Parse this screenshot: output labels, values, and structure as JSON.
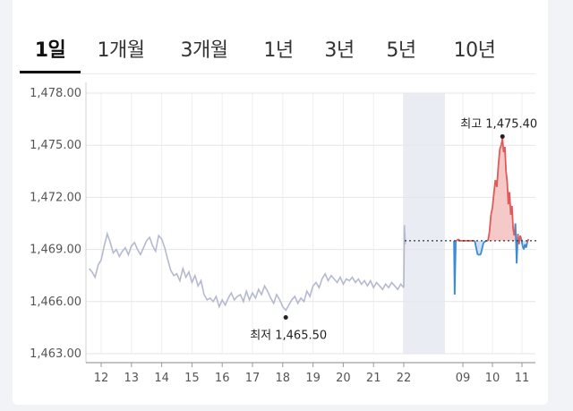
{
  "tabs": [
    {
      "label": "1일",
      "active": true
    },
    {
      "label": "1개월",
      "active": false
    },
    {
      "label": "3개월",
      "active": false
    },
    {
      "label": "1년",
      "active": false
    },
    {
      "label": "3년",
      "active": false
    },
    {
      "label": "5년",
      "active": false
    },
    {
      "label": "10년",
      "active": false
    }
  ],
  "chart_data": {
    "type": "line",
    "y_ticks": [
      "1,478.00",
      "1,475.00",
      "1,472.00",
      "1,469.00",
      "1,466.00",
      "1,463.00"
    ],
    "ylim": [
      1463,
      1478
    ],
    "x_ticks_past": [
      "12",
      "13",
      "14",
      "15",
      "16",
      "17",
      "18",
      "19",
      "20",
      "21",
      "22"
    ],
    "x_ticks_today": [
      "09",
      "10",
      "11"
    ],
    "reference_value": 1469.5,
    "high_label": "최고 1,475.40",
    "high_value": 1475.4,
    "low_label": "최저 1,465.50",
    "low_value": 1465.5,
    "past_series": {
      "name": "",
      "color": "#b5b9d0",
      "x": [
        11.6,
        11.7,
        11.8,
        11.9,
        12.0,
        12.1,
        12.2,
        12.3,
        12.4,
        12.5,
        12.6,
        12.7,
        12.8,
        12.9,
        13.0,
        13.1,
        13.2,
        13.3,
        13.4,
        13.5,
        13.6,
        13.7,
        13.8,
        13.9,
        14.0,
        14.1,
        14.2,
        14.3,
        14.4,
        14.5,
        14.6,
        14.7,
        14.8,
        14.9,
        15.0,
        15.1,
        15.2,
        15.3,
        15.4,
        15.5,
        15.6,
        15.7,
        15.8,
        15.9,
        16.0,
        16.1,
        16.2,
        16.3,
        16.4,
        16.5,
        16.6,
        16.7,
        16.8,
        16.9,
        17.0,
        17.1,
        17.2,
        17.3,
        17.4,
        17.5,
        17.6,
        17.7,
        17.8,
        17.9,
        18.0,
        18.1,
        18.2,
        18.3,
        18.4,
        18.5,
        18.6,
        18.7,
        18.8,
        18.9,
        19.0,
        19.1,
        19.2,
        19.3,
        19.4,
        19.5,
        19.6,
        19.7,
        19.8,
        19.9,
        20.0,
        20.1,
        20.2,
        20.3,
        20.4,
        20.5,
        20.6,
        20.7,
        20.8,
        20.9,
        21.0,
        21.1,
        21.2,
        21.3,
        21.4,
        21.5,
        21.6,
        21.7,
        21.8,
        21.9,
        22.0
      ],
      "y": [
        1467.9,
        1467.7,
        1467.4,
        1468.1,
        1468.4,
        1469.2,
        1469.9,
        1469.4,
        1468.8,
        1469.0,
        1468.6,
        1468.9,
        1469.1,
        1468.7,
        1469.2,
        1469.4,
        1469.0,
        1468.7,
        1469.1,
        1469.5,
        1469.7,
        1469.2,
        1468.9,
        1469.8,
        1469.6,
        1469.1,
        1468.4,
        1467.8,
        1467.5,
        1467.6,
        1467.2,
        1467.9,
        1467.4,
        1467.7,
        1467.1,
        1467.5,
        1466.9,
        1467.2,
        1466.4,
        1466.1,
        1466.2,
        1466.0,
        1466.3,
        1465.7,
        1466.1,
        1465.8,
        1466.2,
        1466.5,
        1466.1,
        1466.3,
        1466.4,
        1466.0,
        1466.6,
        1466.1,
        1466.5,
        1466.2,
        1466.7,
        1466.4,
        1466.9,
        1466.6,
        1466.2,
        1465.9,
        1466.4,
        1466.1,
        1465.7,
        1465.5,
        1465.8,
        1466.1,
        1466.3,
        1465.9,
        1466.2,
        1466.0,
        1466.6,
        1466.3,
        1466.9,
        1467.1,
        1466.8,
        1467.3,
        1467.6,
        1467.2,
        1467.5,
        1467.3,
        1467.1,
        1467.4,
        1467.0,
        1467.3,
        1467.2,
        1467.4,
        1467.1,
        1467.3,
        1467.0,
        1467.2,
        1466.9,
        1467.2,
        1466.8,
        1467.1,
        1466.9,
        1466.7,
        1467.0,
        1466.8,
        1467.1,
        1466.9,
        1466.7,
        1467.0,
        1466.8
      ]
    },
    "today_series": {
      "name": "",
      "color_above": "#e05a5a",
      "color_below": "#3a8ad6",
      "x": [
        8.7,
        8.72,
        8.76,
        8.8,
        8.84,
        8.9,
        9.0,
        9.1,
        9.2,
        9.3,
        9.4,
        9.5,
        9.6,
        9.7,
        9.8,
        9.85,
        9.9,
        9.95,
        10.0,
        10.05,
        10.1,
        10.15,
        10.2,
        10.25,
        10.3,
        10.34,
        10.38,
        10.42,
        10.46,
        10.5,
        10.54,
        10.58,
        10.62,
        10.66,
        10.7,
        10.74,
        10.78,
        10.82,
        10.86,
        10.9,
        10.94,
        10.98,
        11.02,
        11.06,
        11.1,
        11.14,
        11.18,
        11.22
      ],
      "y": [
        1469.5,
        1466.4,
        1469.5,
        1469.5,
        1469.6,
        1469.5,
        1469.5,
        1469.5,
        1469.5,
        1469.5,
        1469.5,
        1468.7,
        1468.7,
        1469.4,
        1469.5,
        1469.5,
        1470.0,
        1471.0,
        1471.4,
        1472.2,
        1473.0,
        1472.6,
        1473.8,
        1474.8,
        1475.0,
        1475.4,
        1474.6,
        1474.9,
        1473.5,
        1472.9,
        1471.6,
        1472.3,
        1471.0,
        1471.5,
        1470.2,
        1469.8,
        1470.5,
        1468.2,
        1469.9,
        1469.3,
        1469.8,
        1469.6,
        1469.2,
        1469.0,
        1469.3,
        1469.1,
        1469.4,
        1469.6
      ]
    }
  }
}
